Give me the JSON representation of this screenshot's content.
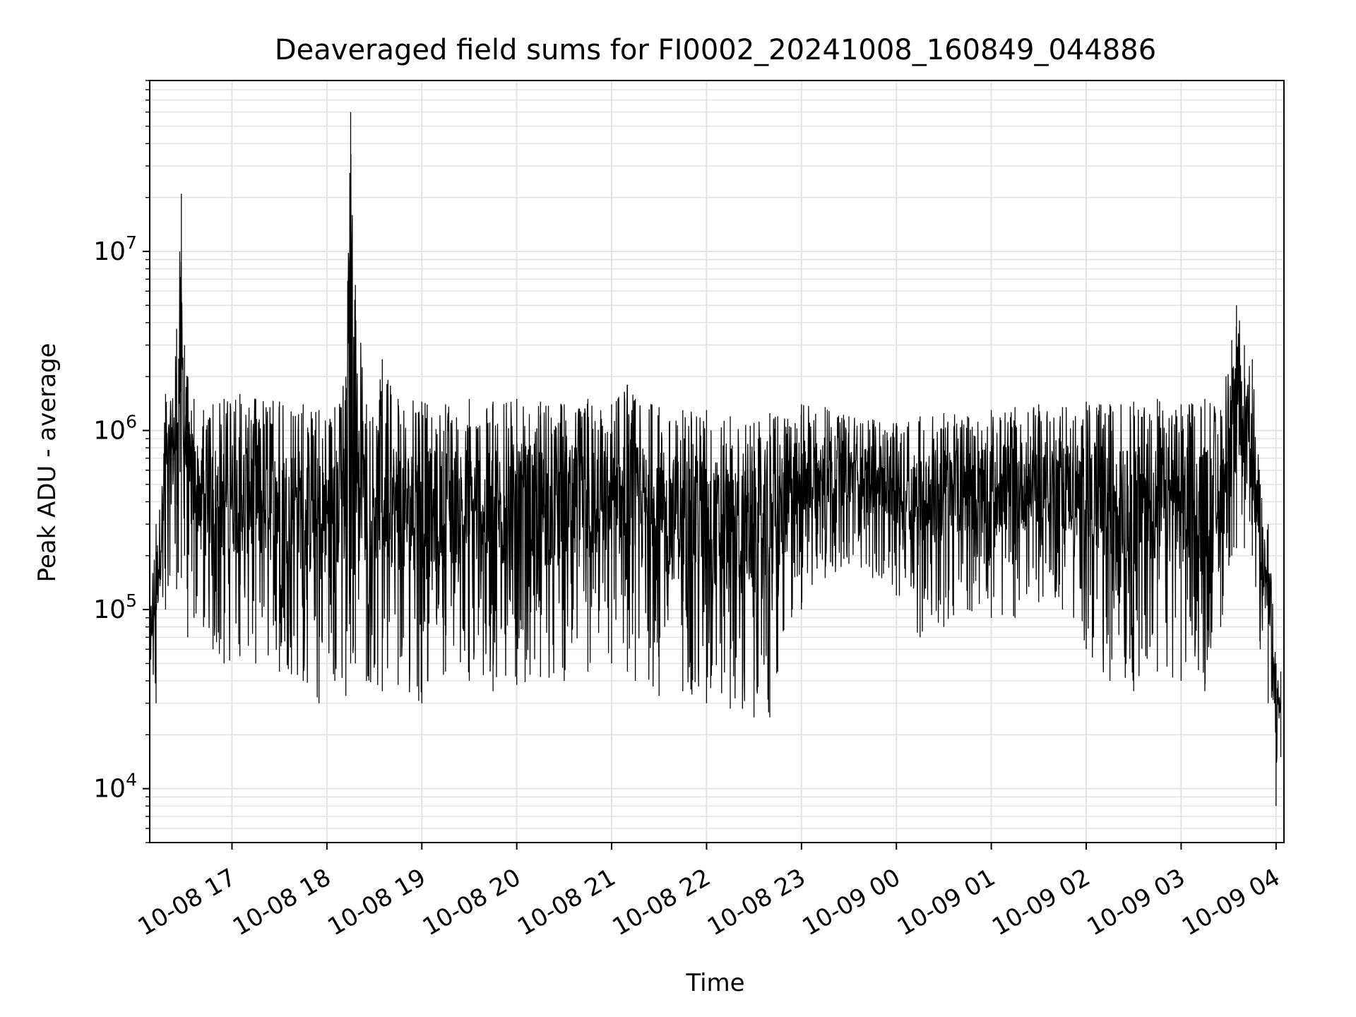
{
  "chart_data": {
    "type": "line",
    "title": "Deaveraged field sums for FI0002_20241008_160849_044886",
    "xlabel": "Time",
    "ylabel": "Peak ADU - average",
    "yscale": "log",
    "ylim": [
      5000,
      90000000
    ],
    "xlim": [
      "2024-10-08 16:08",
      "2024-10-09 04:05"
    ],
    "grid": true,
    "x_ticks": [
      {
        "t": "2024-10-08 17:00",
        "label": "10-08 17"
      },
      {
        "t": "2024-10-08 18:00",
        "label": "10-08 18"
      },
      {
        "t": "2024-10-08 19:00",
        "label": "10-08 19"
      },
      {
        "t": "2024-10-08 20:00",
        "label": "10-08 20"
      },
      {
        "t": "2024-10-08 21:00",
        "label": "10-08 21"
      },
      {
        "t": "2024-10-08 22:00",
        "label": "10-08 22"
      },
      {
        "t": "2024-10-08 23:00",
        "label": "10-08 23"
      },
      {
        "t": "2024-10-09 00:00",
        "label": "10-09 00"
      },
      {
        "t": "2024-10-09 01:00",
        "label": "10-09 01"
      },
      {
        "t": "2024-10-09 02:00",
        "label": "10-09 02"
      },
      {
        "t": "2024-10-09 03:00",
        "label": "10-09 03"
      },
      {
        "t": "2024-10-09 04:00",
        "label": "10-09 04"
      }
    ],
    "y_ticks": [
      {
        "value": 10000,
        "base": "10",
        "exp": "4"
      },
      {
        "value": 100000,
        "base": "10",
        "exp": "5"
      },
      {
        "value": 1000000,
        "base": "10",
        "exp": "6"
      },
      {
        "value": 10000000,
        "base": "10",
        "exp": "7"
      }
    ],
    "series": [
      {
        "color": "#000000",
        "x": [
          "2024-10-08 16:08",
          "2024-10-08 16:12",
          "2024-10-08 16:18",
          "2024-10-08 16:25",
          "2024-10-08 16:28",
          "2024-10-08 16:30",
          "2024-10-08 16:32",
          "2024-10-08 16:36",
          "2024-10-08 16:42",
          "2024-10-08 16:48",
          "2024-10-08 16:55",
          "2024-10-08 17:05",
          "2024-10-08 17:15",
          "2024-10-08 17:30",
          "2024-10-08 17:45",
          "2024-10-08 17:55",
          "2024-10-08 18:05",
          "2024-10-08 18:12",
          "2024-10-08 18:15",
          "2024-10-08 18:18",
          "2024-10-08 18:25",
          "2024-10-08 18:35",
          "2024-10-08 18:45",
          "2024-10-08 19:00",
          "2024-10-08 19:15",
          "2024-10-08 19:30",
          "2024-10-08 19:45",
          "2024-10-08 20:00",
          "2024-10-08 20:15",
          "2024-10-08 20:30",
          "2024-10-08 20:45",
          "2024-10-08 21:00",
          "2024-10-08 21:10",
          "2024-10-08 21:15",
          "2024-10-08 21:30",
          "2024-10-08 21:45",
          "2024-10-08 22:00",
          "2024-10-08 22:15",
          "2024-10-08 22:30",
          "2024-10-08 22:40",
          "2024-10-08 22:45",
          "2024-10-08 23:00",
          "2024-10-08 23:15",
          "2024-10-08 23:30",
          "2024-10-08 23:45",
          "2024-10-09 00:00",
          "2024-10-09 00:15",
          "2024-10-09 00:30",
          "2024-10-09 00:45",
          "2024-10-09 01:00",
          "2024-10-09 01:15",
          "2024-10-09 01:30",
          "2024-10-09 01:45",
          "2024-10-09 02:00",
          "2024-10-09 02:15",
          "2024-10-09 02:30",
          "2024-10-09 02:45",
          "2024-10-09 03:00",
          "2024-10-09 03:15",
          "2024-10-09 03:25",
          "2024-10-09 03:32",
          "2024-10-09 03:35",
          "2024-10-09 03:40",
          "2024-10-09 03:45",
          "2024-10-09 03:50",
          "2024-10-09 03:55",
          "2024-10-09 04:00",
          "2024-10-09 04:03"
        ],
        "envelope_upper": [
          120000,
          300000,
          1600000,
          3700000,
          21000000,
          3000000,
          2000000,
          1500000,
          1300000,
          1400000,
          1500000,
          1600000,
          1500000,
          1450000,
          1400000,
          1300000,
          1350000,
          2000000,
          60000000,
          6500000,
          1400000,
          2500000,
          1500000,
          1450000,
          1400000,
          1500000,
          1450000,
          1500000,
          1450000,
          1400000,
          1500000,
          1400000,
          1800000,
          1500000,
          1350000,
          1300000,
          1300000,
          1200000,
          1100000,
          1250000,
          1200000,
          1400000,
          1350000,
          1200000,
          1150000,
          1100000,
          1200000,
          1250000,
          1200000,
          1300000,
          1350000,
          1400000,
          1350000,
          1450000,
          1400000,
          1450000,
          1500000,
          1400000,
          1500000,
          1300000,
          3200000,
          5000000,
          3000000,
          2500000,
          500000,
          300000,
          50000,
          45000
        ],
        "envelope_lower": [
          35000,
          30000,
          100000,
          130000,
          150000,
          200000,
          70000,
          90000,
          80000,
          60000,
          50000,
          55000,
          50000,
          45000,
          40000,
          30000,
          40000,
          33000,
          50000,
          50000,
          40000,
          35000,
          38000,
          30000,
          45000,
          40000,
          35000,
          38000,
          42000,
          40000,
          45000,
          50000,
          45000,
          40000,
          33000,
          35000,
          30000,
          28000,
          25000,
          25000,
          45000,
          100000,
          150000,
          180000,
          150000,
          120000,
          70000,
          80000,
          100000,
          90000,
          90000,
          110000,
          100000,
          60000,
          40000,
          35000,
          45000,
          40000,
          35000,
          80000,
          200000,
          220000,
          220000,
          200000,
          60000,
          30000,
          8000,
          15000
        ]
      }
    ]
  }
}
